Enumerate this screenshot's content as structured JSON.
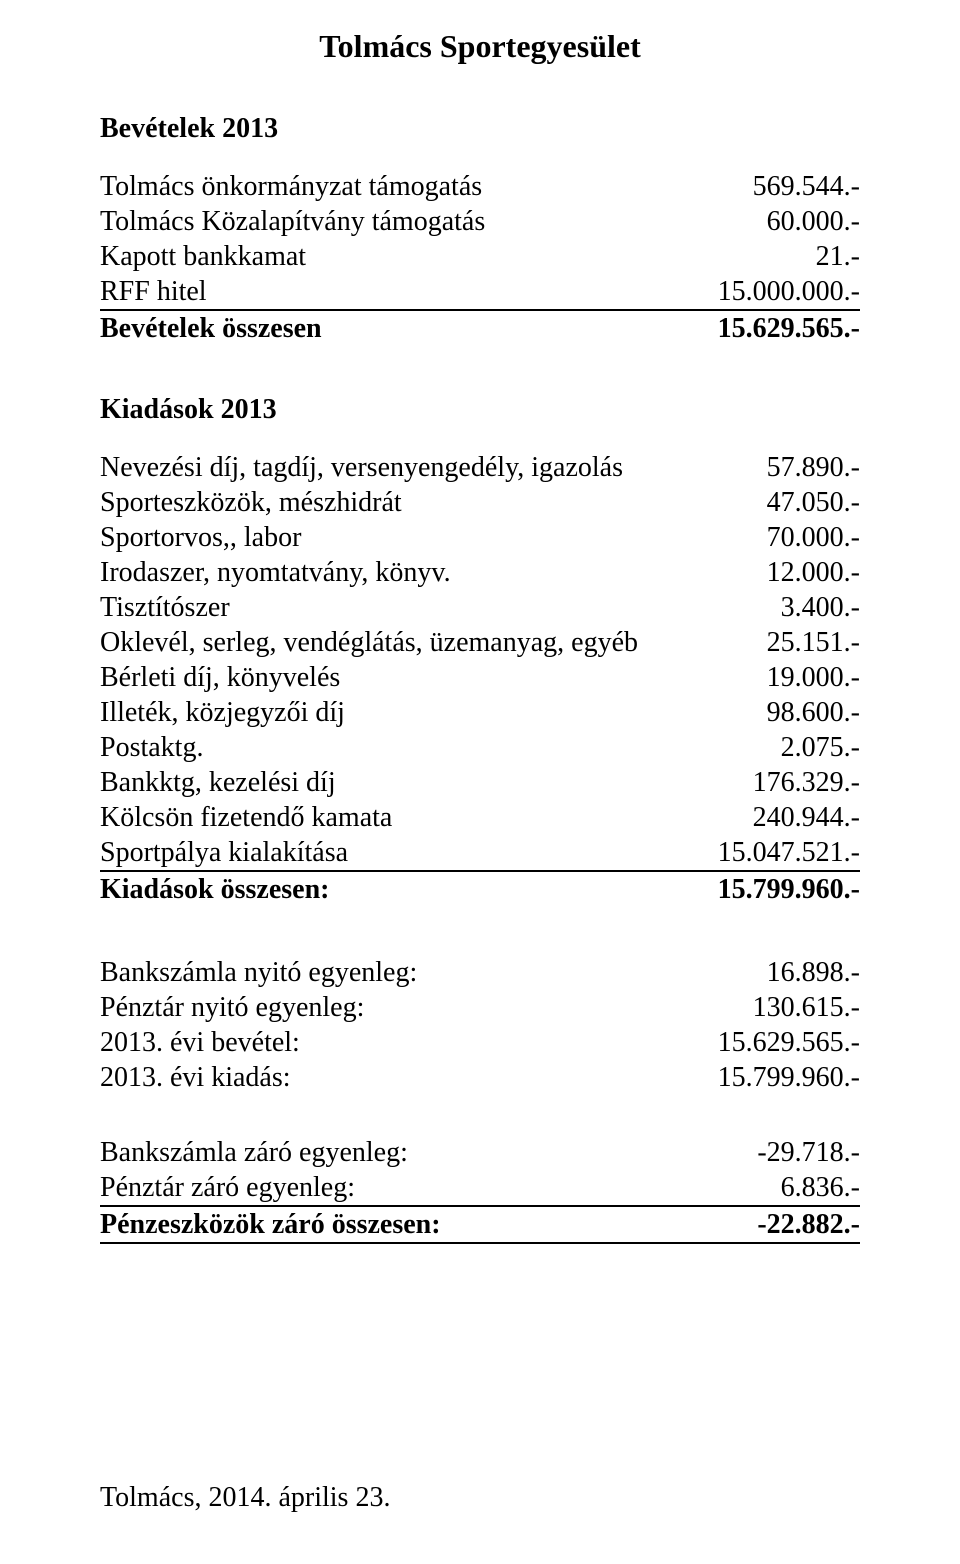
{
  "title": "Tolmács Sportegyesület",
  "revenues": {
    "heading": "Bevételek 2013",
    "items": [
      {
        "label": "Tolmács önkormányzat támogatás",
        "value": "569.544.-"
      },
      {
        "label": "Tolmács Közalapítvány támogatás",
        "value": "60.000.-"
      },
      {
        "label": "Kapott bankkamat",
        "value": "21.-"
      },
      {
        "label": "RFF hitel",
        "value": "15.000.000.-"
      }
    ],
    "total": {
      "label": "Bevételek összesen",
      "value": "15.629.565.-"
    }
  },
  "expenses": {
    "heading": "Kiadások 2013",
    "items": [
      {
        "label": "Nevezési díj, tagdíj, versenyengedély, igazolás",
        "value": "57.890.-"
      },
      {
        "label": "Sporteszközök, mészhidrát",
        "value": "47.050.-"
      },
      {
        "label": "Sportorvos,, labor",
        "value": "70.000.-"
      },
      {
        "label": "Irodaszer, nyomtatvány, könyv.",
        "value": "12.000.-"
      },
      {
        "label": "Tisztítószer",
        "value": "3.400.-"
      },
      {
        "label": "Oklevél, serleg, vendéglátás, üzemanyag, egyéb",
        "value": "25.151.-"
      },
      {
        "label": "Bérleti díj, könyvelés",
        "value": "19.000.-"
      },
      {
        "label": "Illeték, közjegyzői díj",
        "value": "98.600.-"
      },
      {
        "label": "Postaktg.",
        "value": "2.075.-"
      },
      {
        "label": "Bankktg, kezelési díj",
        "value": "176.329.-"
      },
      {
        "label": "Kölcsön fizetendő kamata",
        "value": "240.944.-"
      },
      {
        "label": "Sportpálya kialakítása",
        "value": "15.047.521.-"
      }
    ],
    "total": {
      "label": "Kiadások összesen:",
      "value": "15.799.960.-"
    }
  },
  "balances_open": {
    "items": [
      {
        "label": "Bankszámla nyitó egyenleg:",
        "value": "16.898.-"
      },
      {
        "label": "Pénztár nyitó egyenleg:",
        "value": "130.615.-"
      },
      {
        "label": "2013. évi bevétel:",
        "value": "15.629.565.-"
      },
      {
        "label": "2013. évi kiadás:",
        "value": "15.799.960.-"
      }
    ]
  },
  "balances_close": {
    "items": [
      {
        "label": "Bankszámla záró egyenleg:",
        "value": "-29.718.-"
      },
      {
        "label": "Pénztár záró egyenleg:",
        "value": "6.836.-"
      }
    ],
    "total": {
      "label": "Pénzeszközök záró összesen:",
      "value": "-22.882.-"
    }
  },
  "footer_date": "Tolmács, 2014. április 23."
}
